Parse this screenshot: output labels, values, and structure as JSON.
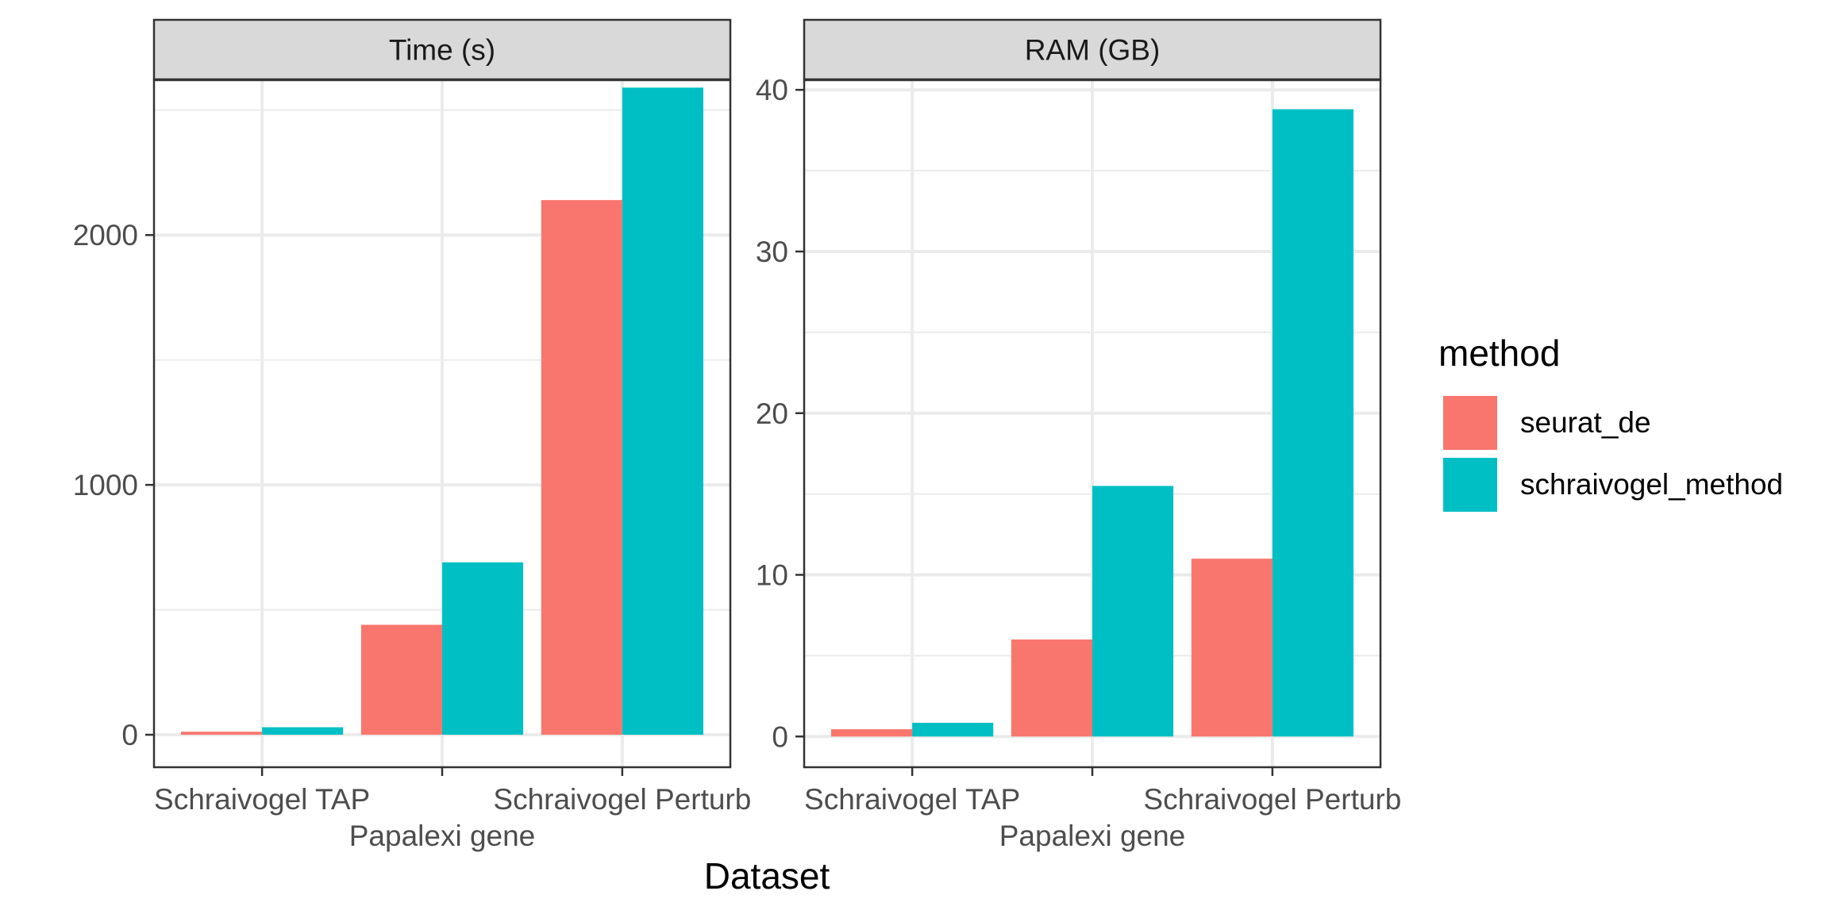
{
  "chart_data": {
    "type": "bar",
    "layout": "faceted",
    "xlabel": "Dataset",
    "categories": [
      "Schraivogel TAP",
      "Papalexi gene",
      "Schraivogel Perturb"
    ],
    "category_label_rows": [
      "top",
      "bottom",
      "top"
    ],
    "legend": {
      "title": "method",
      "placement": "right",
      "entries": [
        {
          "name": "seurat_de",
          "color": "#F8766D"
        },
        {
          "name": "schraivogel_method",
          "color": "#00BFC4"
        }
      ]
    },
    "grid": true,
    "facets": [
      {
        "title": "Time (s)",
        "ylim": [
          -130,
          2620
        ],
        "yticks": [
          0,
          1000,
          2000
        ],
        "ytick_labels": [
          "0",
          "1000",
          "2000"
        ],
        "series": [
          {
            "name": "seurat_de",
            "values": [
              12,
              440,
              2140
            ]
          },
          {
            "name": "schraivogel_method",
            "values": [
              30,
              690,
              2590
            ]
          }
        ]
      },
      {
        "title": "RAM (GB)",
        "ylim": [
          -1.9,
          40.6
        ],
        "yticks": [
          0,
          10,
          20,
          30,
          40
        ],
        "ytick_labels": [
          "0",
          "10",
          "20",
          "30",
          "40"
        ],
        "series": [
          {
            "name": "seurat_de",
            "values": [
              0.45,
              6.0,
              11.0
            ]
          },
          {
            "name": "schraivogel_method",
            "values": [
              0.85,
              15.5,
              38.8
            ]
          }
        ]
      }
    ]
  }
}
